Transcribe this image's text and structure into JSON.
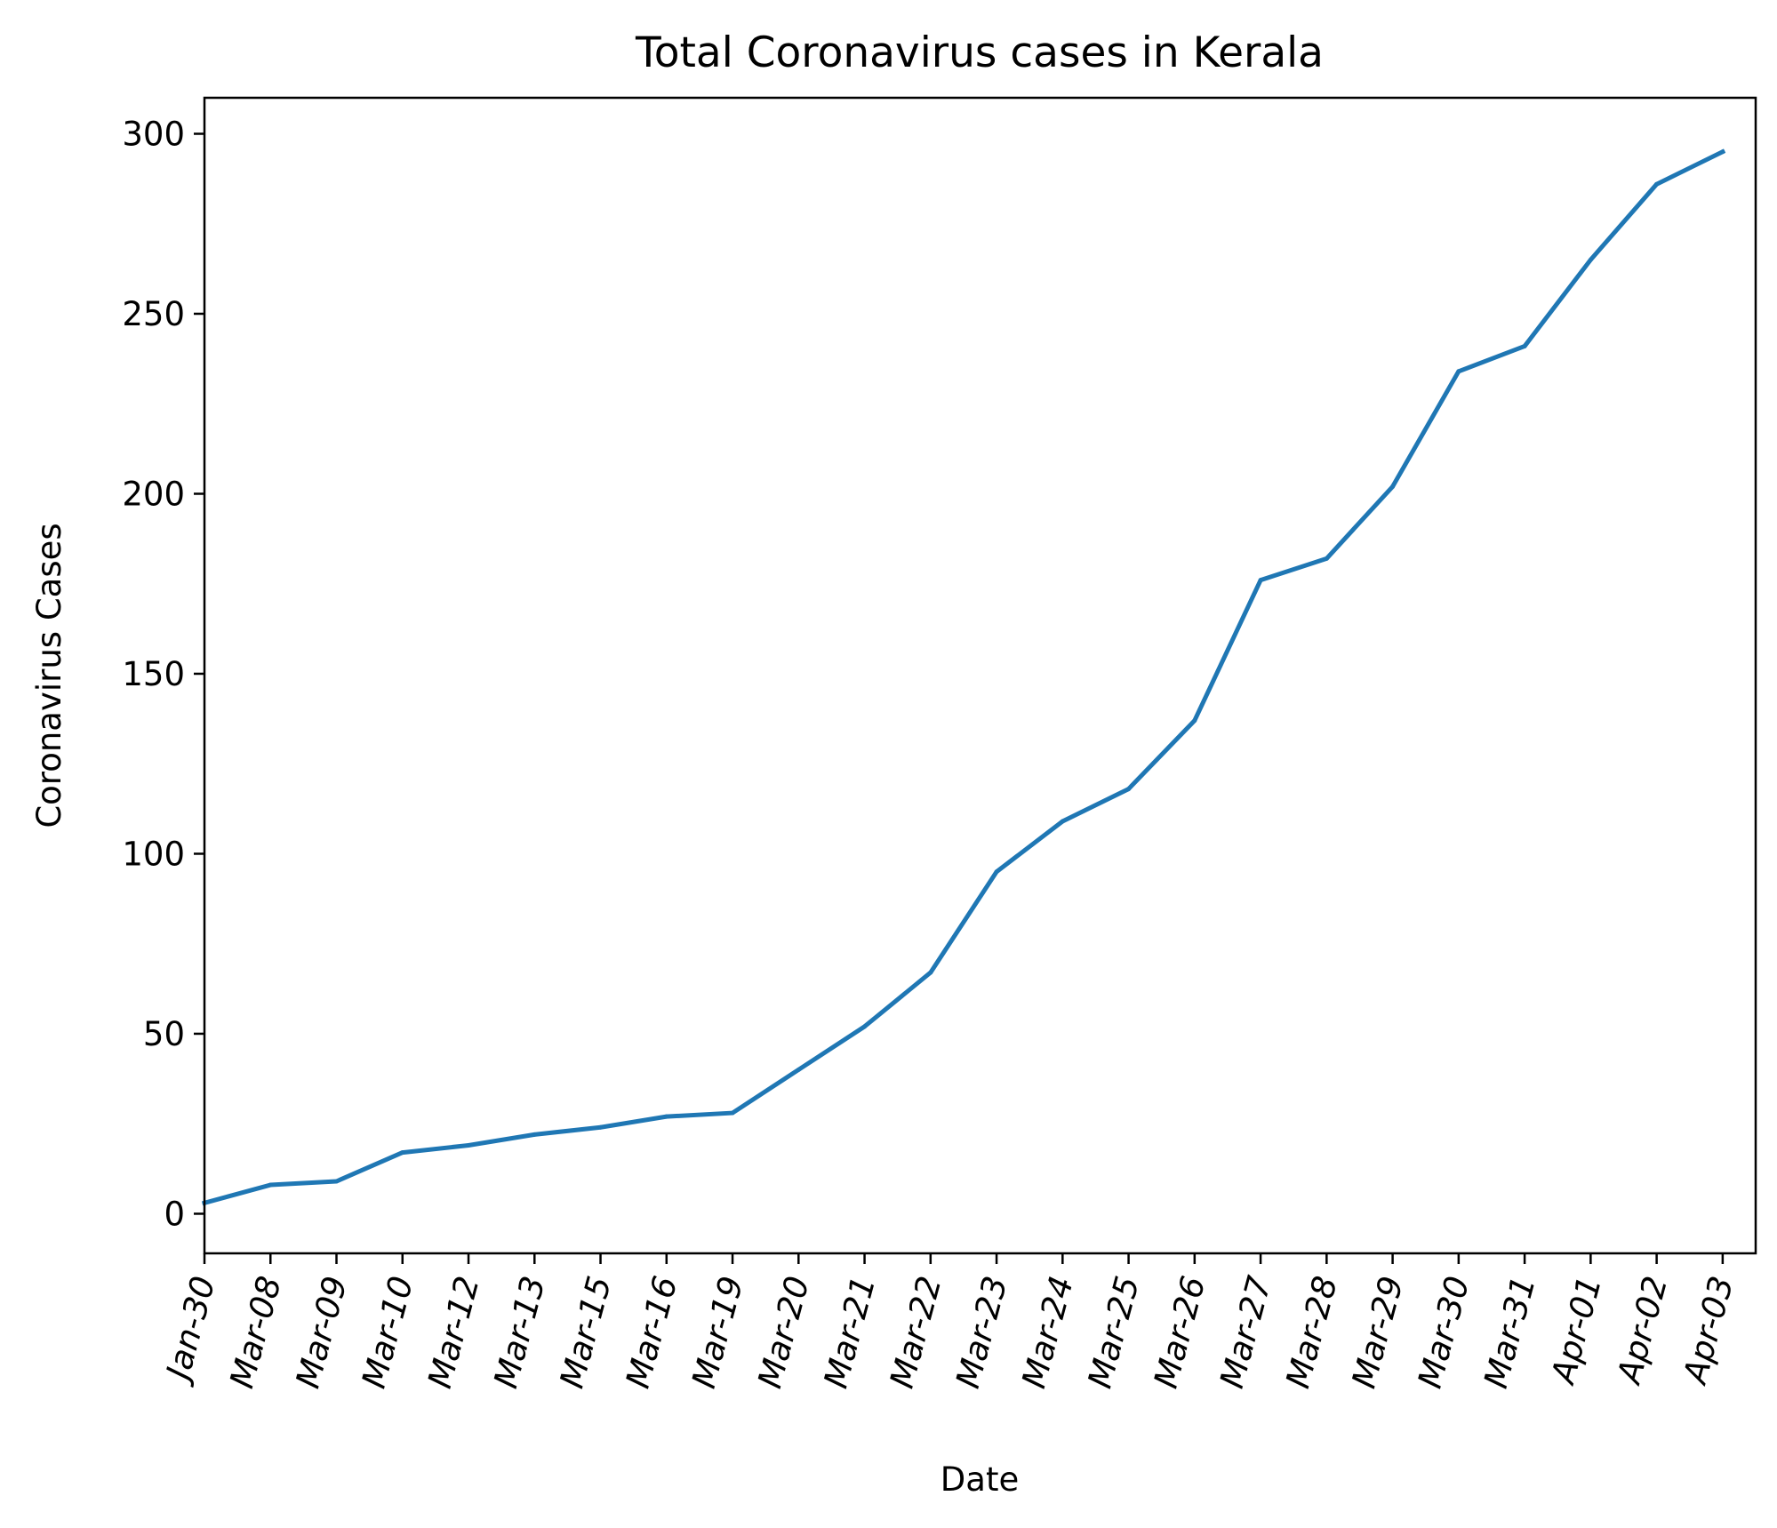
{
  "chart_data": {
    "type": "line",
    "title": "Total Coronavirus cases in Kerala",
    "xlabel": "Date",
    "ylabel": "Coronavirus Cases",
    "categories": [
      "Jan-30",
      "Mar-08",
      "Mar-09",
      "Mar-10",
      "Mar-12",
      "Mar-13",
      "Mar-15",
      "Mar-16",
      "Mar-19",
      "Mar-20",
      "Mar-21",
      "Mar-22",
      "Mar-23",
      "Mar-24",
      "Mar-25",
      "Mar-26",
      "Mar-27",
      "Mar-28",
      "Mar-29",
      "Mar-30",
      "Mar-31",
      "Apr-01",
      "Apr-02",
      "Apr-03"
    ],
    "series": [
      {
        "values": [
          3,
          8,
          9,
          17,
          19,
          22,
          24,
          27,
          28,
          40,
          52,
          67,
          95,
          109,
          118,
          137,
          176,
          182,
          202,
          234,
          241,
          265,
          286,
          295
        ]
      }
    ],
    "ylim": [
      -11,
      310
    ],
    "yticks": [
      0,
      50,
      100,
      150,
      200,
      250,
      300
    ],
    "grid": false,
    "line_color": "#1f77b4"
  }
}
